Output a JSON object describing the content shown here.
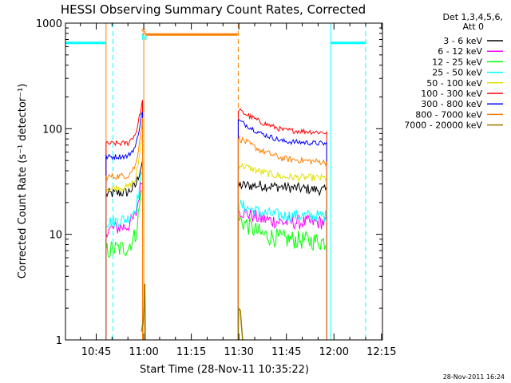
{
  "chart_data": {
    "type": "line",
    "title": "HESSI Observing Summary Count Rates, Corrected",
    "xlabel": "Start Time (28-Nov-11 10:35:22)",
    "ylabel": "Corrected Count Rate (s⁻¹ detector⁻¹)",
    "yscale": "log",
    "ylim": [
      1,
      1000
    ],
    "xlim_minutes": [
      35.3,
      135.3
    ],
    "x_ticks": [
      {
        "label": "10:45",
        "min": 45
      },
      {
        "label": "11:00",
        "min": 60
      },
      {
        "label": "11:15",
        "min": 75
      },
      {
        "label": "11:30",
        "min": 90
      },
      {
        "label": "11:45",
        "min": 105
      },
      {
        "label": "12:00",
        "min": 120
      },
      {
        "label": "12:15",
        "min": 135
      }
    ],
    "y_ticks": [
      {
        "label": "1",
        "value": 1
      },
      {
        "label": "10",
        "value": 10
      },
      {
        "label": "100",
        "value": 100
      },
      {
        "label": "1000",
        "value": 1000
      }
    ],
    "legend_header": [
      "Det 1,3,4,5,6,",
      "Att 0"
    ],
    "legend_placement": "top-right",
    "segments": [
      [
        48.1,
        59.6
      ],
      [
        89.8,
        117.7
      ]
    ],
    "series": [
      {
        "name": "3 - 6 keV",
        "color": "#000000",
        "seg1": [
          [
            48.1,
            24
          ],
          [
            55,
            25
          ],
          [
            57.5,
            29
          ],
          [
            59.6,
            50
          ]
        ],
        "seg2": [
          [
            89.8,
            29
          ],
          [
            97,
            29
          ],
          [
            104,
            28
          ],
          [
            117.7,
            26
          ]
        ],
        "noise": 0.05
      },
      {
        "name": "6 - 12 keV",
        "color": "#ff00ff",
        "seg1": [
          [
            48.1,
            11
          ],
          [
            55,
            12
          ],
          [
            57.5,
            15
          ],
          [
            59.6,
            36
          ]
        ],
        "seg2": [
          [
            89.8,
            17
          ],
          [
            97,
            14
          ],
          [
            104,
            13
          ],
          [
            117.7,
            13
          ]
        ],
        "noise": 0.07
      },
      {
        "name": "12 - 25 keV",
        "color": "#00ff00",
        "seg1": [
          [
            48.1,
            7
          ],
          [
            55,
            7.5
          ],
          [
            57.5,
            10
          ],
          [
            59.6,
            30
          ]
        ],
        "seg2": [
          [
            89.8,
            14
          ],
          [
            97,
            10
          ],
          [
            104,
            9
          ],
          [
            117.7,
            8.5
          ]
        ],
        "noise": 0.09
      },
      {
        "name": "25 - 50 keV",
        "color": "#00ffff",
        "seg1": [
          [
            48.1,
            13
          ],
          [
            55,
            14
          ],
          [
            57.5,
            18
          ],
          [
            59.6,
            40
          ]
        ],
        "seg2": [
          [
            89.8,
            19
          ],
          [
            97,
            16
          ],
          [
            104,
            15
          ],
          [
            117.7,
            15
          ]
        ],
        "noise": 0.06
      },
      {
        "name": "50 - 100 keV",
        "color": "#e0e000",
        "seg1": [
          [
            48.1,
            27
          ],
          [
            55,
            28
          ],
          [
            57.5,
            33
          ],
          [
            59.6,
            90
          ]
        ],
        "seg2": [
          [
            89.8,
            46
          ],
          [
            97,
            39
          ],
          [
            104,
            35
          ],
          [
            117.7,
            34
          ]
        ],
        "noise": 0.035
      },
      {
        "name": "100 - 300 keV",
        "color": "#ff0000",
        "seg1": [
          [
            48.1,
            72
          ],
          [
            55,
            73
          ],
          [
            57.5,
            90
          ],
          [
            59.6,
            180
          ]
        ],
        "seg2": [
          [
            89.8,
            150
          ],
          [
            97,
            115
          ],
          [
            104,
            97
          ],
          [
            117.7,
            92
          ]
        ],
        "noise": 0.025
      },
      {
        "name": "300 - 800 keV",
        "color": "#0000ff",
        "seg1": [
          [
            48.1,
            54
          ],
          [
            55,
            55
          ],
          [
            57.5,
            68
          ],
          [
            59.6,
            150
          ]
        ],
        "seg2": [
          [
            89.8,
            120
          ],
          [
            97,
            90
          ],
          [
            104,
            76
          ],
          [
            117.7,
            72
          ]
        ],
        "noise": 0.025
      },
      {
        "name": "800 - 7000 keV",
        "color": "#ff7f00",
        "seg1": [
          [
            48.1,
            35
          ],
          [
            55,
            36
          ],
          [
            57.5,
            45
          ],
          [
            59.6,
            120
          ]
        ],
        "seg2": [
          [
            89.8,
            82
          ],
          [
            97,
            62
          ],
          [
            104,
            52
          ],
          [
            117.7,
            48
          ]
        ],
        "noise": 0.03
      },
      {
        "name": "7000 - 20000 keV",
        "color": "#a07800"
      }
    ],
    "saa_level": 650,
    "saa_segments": [
      [
        35.3,
        48.1
      ],
      [
        119,
        130
      ]
    ],
    "flare_level": 780,
    "flare_segment": [
      60.5,
      89.6
    ],
    "vlines": [
      {
        "min": 35.3,
        "color": "#00ffff",
        "dash": false
      },
      {
        "min": 48.1,
        "color": "#ff7f00",
        "dash": false
      },
      {
        "min": 50.3,
        "color": "#00ffff",
        "dash": true
      },
      {
        "min": 60.0,
        "color": "#ff7f00",
        "dash": false
      },
      {
        "min": 89.8,
        "color": "#ff7f00",
        "dash": true
      },
      {
        "min": 119.0,
        "color": "#00ffff",
        "dash": false
      },
      {
        "min": 130.0,
        "color": "#00ffff",
        "dash": true
      }
    ],
    "flag_labels": [
      {
        "text": "S",
        "min": 59.2,
        "color": "#ff7f00",
        "dy": 0
      },
      {
        "text": "N",
        "min": 59.2,
        "color": "#00ffff",
        "dy": 7
      }
    ]
  },
  "footer_timestamp": "28-Nov-2011 16:24"
}
